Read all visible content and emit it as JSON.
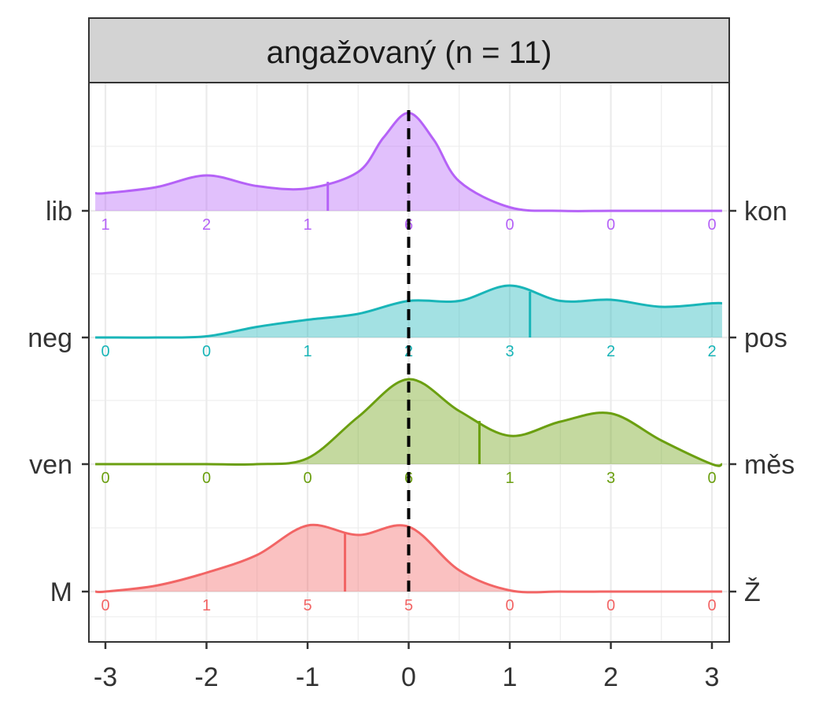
{
  "chart_data": {
    "type": "ridgeline-density",
    "title": "angažovaný (n = 11)",
    "xlim": [
      -3,
      3
    ],
    "x_ticks": [
      -3,
      -2,
      -1,
      0,
      1,
      2,
      3
    ],
    "x_tick_labels": [
      "-3",
      "-2",
      "-1",
      "0",
      "1",
      "2",
      "3"
    ],
    "reference_line_x": 0,
    "grid": true,
    "series": [
      {
        "left_label": "lib",
        "right_label": "kon",
        "color": "#b562f7",
        "mean": -0.8,
        "counts": [
          1,
          2,
          1,
          6,
          0,
          0,
          0
        ],
        "density_x": [
          -3,
          -2.5,
          -2,
          -1.5,
          -1,
          -0.5,
          -0.25,
          0,
          0.25,
          0.5,
          1,
          1.5,
          2,
          2.5,
          3
        ],
        "density_y": [
          0.15,
          0.2,
          0.3,
          0.21,
          0.19,
          0.33,
          0.62,
          0.83,
          0.6,
          0.25,
          0.03,
          0.0,
          0.0,
          0.0,
          0.0
        ]
      },
      {
        "left_label": "neg",
        "right_label": "pos",
        "color": "#19b5b8",
        "mean": 1.2,
        "counts": [
          0,
          0,
          1,
          2,
          3,
          2,
          2
        ],
        "density_x": [
          -3,
          -2.5,
          -2,
          -1.5,
          -1,
          -0.5,
          0,
          0.5,
          1,
          1.5,
          2,
          2.5,
          3
        ],
        "density_y": [
          0.0,
          0.0,
          0.01,
          0.09,
          0.15,
          0.2,
          0.31,
          0.31,
          0.44,
          0.31,
          0.32,
          0.26,
          0.29
        ]
      },
      {
        "left_label": "ven",
        "right_label": "měs",
        "color": "#6b9f10",
        "mean": 0.7,
        "counts": [
          0,
          0,
          0,
          6,
          1,
          3,
          0
        ],
        "density_x": [
          -3,
          -2.5,
          -2,
          -1.5,
          -1,
          -0.5,
          0,
          0.5,
          1,
          1.5,
          2,
          2.5,
          3
        ],
        "density_y": [
          0.0,
          0.0,
          0.0,
          0.0,
          0.05,
          0.4,
          0.72,
          0.45,
          0.24,
          0.36,
          0.43,
          0.2,
          0.0
        ]
      },
      {
        "left_label": "M",
        "right_label": "Ž",
        "color": "#f26565",
        "mean": -0.63,
        "counts": [
          0,
          1,
          5,
          5,
          0,
          0,
          0
        ],
        "density_x": [
          -3,
          -2.5,
          -2,
          -1.5,
          -1,
          -0.5,
          0,
          0.5,
          1,
          1.5,
          2,
          2.5,
          3
        ],
        "density_y": [
          0.0,
          0.05,
          0.16,
          0.31,
          0.56,
          0.48,
          0.55,
          0.18,
          0.01,
          0.0,
          0.0,
          0.0,
          0.0
        ]
      }
    ]
  }
}
